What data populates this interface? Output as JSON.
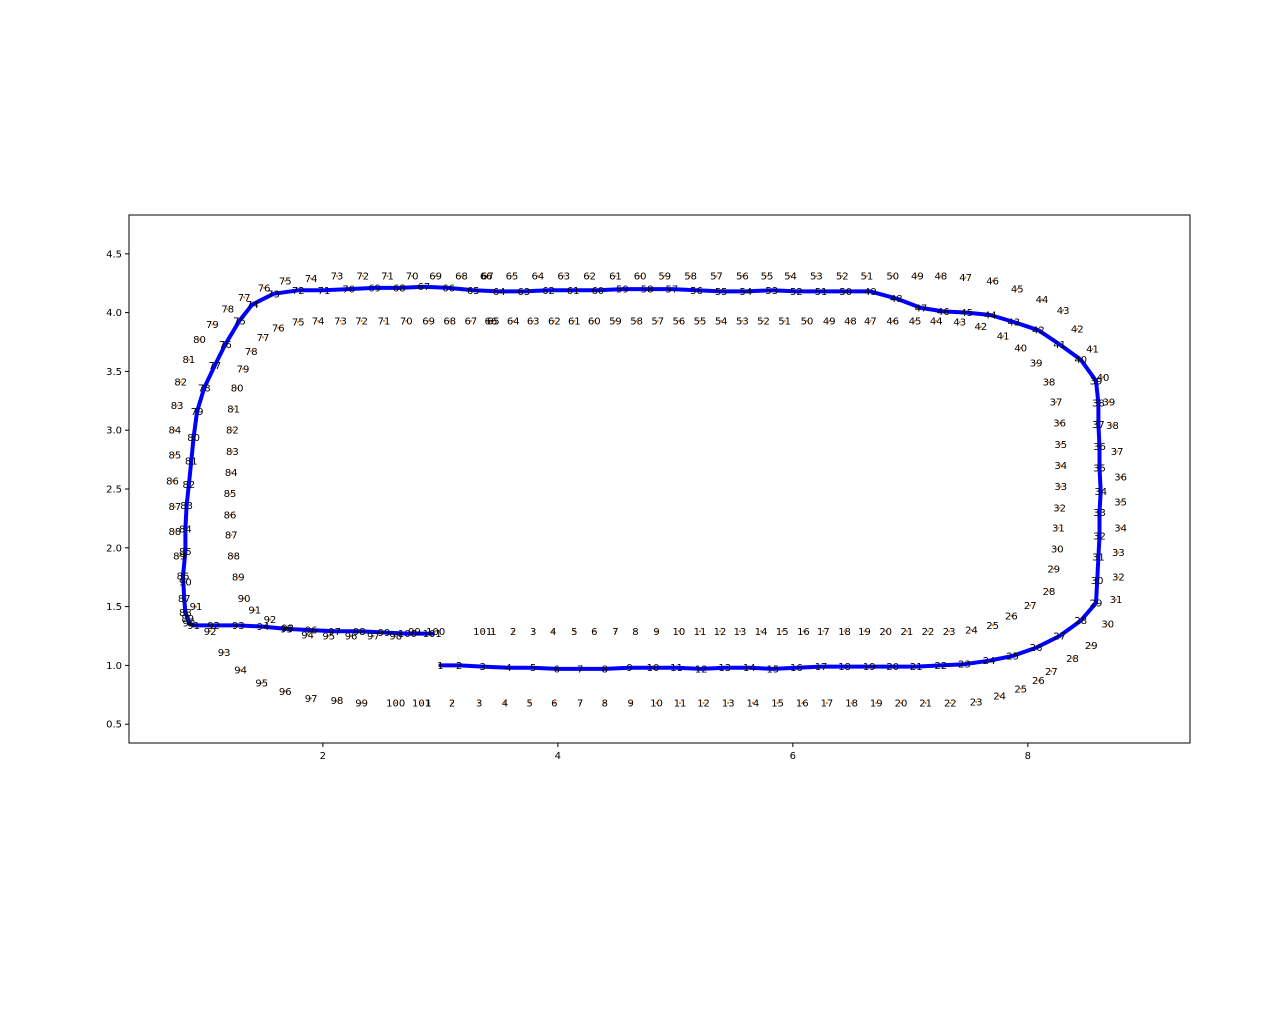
{
  "chart_data": {
    "type": "scatter",
    "title": "",
    "xlabel": "",
    "ylabel": "",
    "xlim": [
      0.35,
      9.38
    ],
    "ylim": [
      0.34,
      4.83
    ],
    "grid": false,
    "x_ticks": [
      "2",
      "4",
      "6",
      "8"
    ],
    "y_ticks": [
      "0.5",
      "1.0",
      "1.5",
      "2.0",
      "2.5",
      "3.0",
      "3.5",
      "4.0",
      "4.5"
    ],
    "point_color": "#ff7f0e",
    "path_color": "#0000ff",
    "series": [
      {
        "role": "outer-boundary",
        "labels": [
          "1",
          "2",
          "3",
          "4",
          "5",
          "6",
          "7",
          "8",
          "9",
          "10",
          "11",
          "12",
          "13",
          "14",
          "15",
          "16",
          "17",
          "18",
          "19",
          "20",
          "21",
          "22",
          "23",
          "24",
          "25",
          "26",
          "27",
          "28",
          "29",
          "30",
          "31",
          "32",
          "33",
          "34",
          "35",
          "36",
          "37",
          "38",
          "39",
          "40",
          "41",
          "42",
          "43",
          "44",
          "45",
          "46",
          "47",
          "48",
          "49",
          "50",
          "51",
          "52",
          "53",
          "54",
          "55",
          "56",
          "57",
          "58",
          "59",
          "60",
          "61",
          "62",
          "63",
          "64",
          "65",
          "66",
          "67",
          "68",
          "69",
          "70",
          "71",
          "72",
          "73",
          "74",
          "75",
          "76",
          "77",
          "78",
          "79",
          "80",
          "81",
          "82",
          "83",
          "84",
          "85",
          "86",
          "87",
          "88",
          "89",
          "90",
          "91",
          "92",
          "93",
          "94",
          "95",
          "96",
          "97",
          "98",
          "99",
          "100",
          "101"
        ],
        "x": [
          2.9,
          3.1,
          3.33,
          3.55,
          3.76,
          3.97,
          4.19,
          4.4,
          4.62,
          4.84,
          5.04,
          5.24,
          5.45,
          5.66,
          5.87,
          6.08,
          6.29,
          6.5,
          6.71,
          6.92,
          7.13,
          7.34,
          7.56,
          7.76,
          7.94,
          8.09,
          8.2,
          8.38,
          8.54,
          8.68,
          8.75,
          8.77,
          8.77,
          8.79,
          8.79,
          8.79,
          8.76,
          8.72,
          8.69,
          8.64,
          8.55,
          8.42,
          8.3,
          8.12,
          7.91,
          7.7,
          7.47,
          7.26,
          7.06,
          6.85,
          6.63,
          6.42,
          6.2,
          5.98,
          5.78,
          5.57,
          5.35,
          5.13,
          4.91,
          4.7,
          4.49,
          4.27,
          4.05,
          3.83,
          3.61,
          3.39,
          3.4,
          3.18,
          2.96,
          2.76,
          2.55,
          2.34,
          2.12,
          1.9,
          1.68,
          1.5,
          1.33,
          1.19,
          1.06,
          0.95,
          0.86,
          0.79,
          0.76,
          0.74,
          0.74,
          0.72,
          0.74,
          0.74,
          0.78,
          0.83,
          0.92,
          1.04,
          1.16,
          1.3,
          1.48,
          1.68,
          1.9,
          2.12,
          2.33,
          2.62,
          2.84
        ],
        "y": [
          0.68,
          0.68,
          0.68,
          0.68,
          0.68,
          0.68,
          0.68,
          0.68,
          0.68,
          0.68,
          0.68,
          0.68,
          0.68,
          0.68,
          0.68,
          0.68,
          0.68,
          0.68,
          0.68,
          0.68,
          0.68,
          0.68,
          0.69,
          0.74,
          0.8,
          0.87,
          0.95,
          1.06,
          1.17,
          1.35,
          1.56,
          1.75,
          1.96,
          2.17,
          2.39,
          2.6,
          2.82,
          3.04,
          3.24,
          3.45,
          3.69,
          3.86,
          4.02,
          4.11,
          4.2,
          4.27,
          4.3,
          4.31,
          4.31,
          4.31,
          4.31,
          4.31,
          4.31,
          4.31,
          4.31,
          4.31,
          4.31,
          4.31,
          4.31,
          4.31,
          4.31,
          4.31,
          4.31,
          4.31,
          4.31,
          4.31,
          4.31,
          4.31,
          4.31,
          4.31,
          4.31,
          4.31,
          4.31,
          4.29,
          4.27,
          4.21,
          4.13,
          4.03,
          3.9,
          3.77,
          3.6,
          3.41,
          3.21,
          3.0,
          2.79,
          2.57,
          2.35,
          2.14,
          1.93,
          1.71,
          1.5,
          1.29,
          1.11,
          0.96,
          0.85,
          0.78,
          0.72,
          0.7,
          0.68,
          0.68,
          0.68
        ]
      },
      {
        "role": "inner-boundary",
        "labels": [
          "1",
          "2",
          "3",
          "4",
          "5",
          "6",
          "7",
          "8",
          "9",
          "10",
          "11",
          "12",
          "13",
          "14",
          "15",
          "16",
          "17",
          "18",
          "19",
          "20",
          "21",
          "22",
          "23",
          "24",
          "25",
          "26",
          "27",
          "28",
          "29",
          "30",
          "31",
          "32",
          "33",
          "34",
          "35",
          "36",
          "37",
          "38",
          "39",
          "40",
          "41",
          "42",
          "43",
          "44",
          "45",
          "46",
          "47",
          "48",
          "49",
          "50",
          "51",
          "52",
          "53",
          "54",
          "55",
          "56",
          "57",
          "58",
          "59",
          "60",
          "61",
          "62",
          "63",
          "64",
          "65",
          "66",
          "67",
          "68",
          "69",
          "70",
          "71",
          "72",
          "73",
          "74",
          "75",
          "76",
          "77",
          "78",
          "79",
          "80",
          "81",
          "82",
          "83",
          "84",
          "85",
          "86",
          "87",
          "88",
          "89",
          "90",
          "91",
          "92",
          "93",
          "94",
          "95",
          "96",
          "97",
          "98",
          "99",
          "100",
          "101"
        ],
        "x": [
          3.45,
          3.62,
          3.79,
          3.96,
          4.14,
          4.31,
          4.49,
          4.66,
          4.84,
          5.03,
          5.21,
          5.38,
          5.55,
          5.73,
          5.91,
          6.09,
          6.26,
          6.44,
          6.61,
          6.79,
          6.97,
          7.15,
          7.33,
          7.52,
          7.7,
          7.86,
          8.02,
          8.18,
          8.22,
          8.25,
          8.26,
          8.27,
          8.28,
          8.28,
          8.28,
          8.27,
          8.24,
          8.18,
          8.07,
          7.94,
          7.79,
          7.6,
          7.42,
          7.22,
          7.04,
          6.85,
          6.66,
          6.49,
          6.31,
          6.12,
          5.93,
          5.75,
          5.57,
          5.39,
          5.21,
          5.03,
          4.85,
          4.67,
          4.49,
          4.31,
          4.14,
          3.97,
          3.79,
          3.62,
          3.45,
          3.43,
          3.26,
          3.08,
          2.9,
          2.71,
          2.52,
          2.33,
          2.15,
          1.96,
          1.79,
          1.62,
          1.49,
          1.39,
          1.32,
          1.27,
          1.24,
          1.23,
          1.23,
          1.22,
          1.21,
          1.21,
          1.22,
          1.24,
          1.28,
          1.33,
          1.42,
          1.55,
          1.7,
          1.87,
          2.05,
          2.24,
          2.43,
          2.62,
          2.78,
          2.96,
          3.36
        ],
        "y": [
          1.29,
          1.29,
          1.29,
          1.29,
          1.29,
          1.29,
          1.29,
          1.29,
          1.29,
          1.29,
          1.29,
          1.29,
          1.29,
          1.29,
          1.29,
          1.29,
          1.29,
          1.29,
          1.29,
          1.29,
          1.29,
          1.29,
          1.29,
          1.3,
          1.34,
          1.42,
          1.51,
          1.63,
          1.82,
          1.99,
          2.17,
          2.34,
          2.52,
          2.7,
          2.88,
          3.06,
          3.24,
          3.41,
          3.57,
          3.7,
          3.8,
          3.88,
          3.92,
          3.93,
          3.93,
          3.93,
          3.93,
          3.93,
          3.93,
          3.93,
          3.93,
          3.93,
          3.93,
          3.93,
          3.93,
          3.93,
          3.93,
          3.93,
          3.93,
          3.93,
          3.93,
          3.93,
          3.93,
          3.93,
          3.93,
          3.93,
          3.93,
          3.93,
          3.93,
          3.93,
          3.93,
          3.93,
          3.93,
          3.93,
          3.92,
          3.87,
          3.79,
          3.67,
          3.52,
          3.36,
          3.18,
          3.0,
          2.82,
          2.64,
          2.46,
          2.28,
          2.11,
          1.93,
          1.75,
          1.57,
          1.47,
          1.39,
          1.32,
          1.26,
          1.25,
          1.25,
          1.25,
          1.25,
          1.29,
          1.29,
          1.29
        ]
      },
      {
        "role": "driven-path",
        "labels": [
          "1",
          "2",
          "3",
          "4",
          "5",
          "6",
          "7",
          "8",
          "9",
          "10",
          "11",
          "12",
          "13",
          "14",
          "15",
          "16",
          "17",
          "18",
          "19",
          "20",
          "21",
          "22",
          "23",
          "24",
          "25",
          "26",
          "27",
          "28",
          "29",
          "30",
          "31",
          "32",
          "33",
          "34",
          "35",
          "36",
          "37",
          "38",
          "39",
          "40",
          "41",
          "42",
          "43",
          "44",
          "45",
          "46",
          "47",
          "48",
          "49",
          "50",
          "51",
          "52",
          "53",
          "54",
          "55",
          "56",
          "57",
          "58",
          "59",
          "60",
          "61",
          "62",
          "63",
          "64",
          "65",
          "66",
          "67",
          "68",
          "69",
          "70",
          "71",
          "72",
          "73",
          "74",
          "75",
          "76",
          "77",
          "78",
          "79",
          "80",
          "81",
          "82",
          "83",
          "84",
          "85",
          "86",
          "87",
          "88",
          "89",
          "90",
          "91",
          "92",
          "93",
          "94",
          "95",
          "96",
          "97",
          "98",
          "99",
          "100",
          "101"
        ],
        "x": [
          3.0,
          3.16,
          3.36,
          3.58,
          3.79,
          3.99,
          4.19,
          4.4,
          4.61,
          4.81,
          5.01,
          5.22,
          5.42,
          5.63,
          5.83,
          6.03,
          6.24,
          6.44,
          6.65,
          6.85,
          7.05,
          7.26,
          7.46,
          7.67,
          7.87,
          8.07,
          8.27,
          8.45,
          8.58,
          8.59,
          8.6,
          8.61,
          8.61,
          8.62,
          8.61,
          8.61,
          8.6,
          8.6,
          8.58,
          8.45,
          8.27,
          8.09,
          7.88,
          7.68,
          7.48,
          7.28,
          7.09,
          6.88,
          6.66,
          6.45,
          6.24,
          6.03,
          5.82,
          5.6,
          5.39,
          5.18,
          4.97,
          4.76,
          4.55,
          4.34,
          4.13,
          3.92,
          3.71,
          3.5,
          3.28,
          3.07,
          2.86,
          2.65,
          2.44,
          2.22,
          2.01,
          1.79,
          1.58,
          1.4,
          1.29,
          1.17,
          1.08,
          0.99,
          0.93,
          0.9,
          0.88,
          0.86,
          0.84,
          0.83,
          0.83,
          0.81,
          0.82,
          0.83,
          0.85,
          0.86,
          0.9,
          1.07,
          1.28,
          1.49,
          1.69,
          1.9,
          2.1,
          2.31,
          2.52,
          2.72,
          2.93
        ],
        "y": [
          1.0,
          1.0,
          0.99,
          0.98,
          0.98,
          0.97,
          0.97,
          0.97,
          0.98,
          0.98,
          0.98,
          0.97,
          0.98,
          0.98,
          0.97,
          0.98,
          0.99,
          0.99,
          0.99,
          0.99,
          0.99,
          1.0,
          1.01,
          1.04,
          1.08,
          1.15,
          1.25,
          1.38,
          1.53,
          1.72,
          1.92,
          2.1,
          2.3,
          2.48,
          2.68,
          2.86,
          3.05,
          3.23,
          3.42,
          3.6,
          3.73,
          3.85,
          3.92,
          3.98,
          4.0,
          4.01,
          4.04,
          4.12,
          4.18,
          4.18,
          4.18,
          4.18,
          4.19,
          4.18,
          4.18,
          4.19,
          4.2,
          4.2,
          4.2,
          4.19,
          4.19,
          4.19,
          4.18,
          4.18,
          4.19,
          4.21,
          4.22,
          4.21,
          4.21,
          4.2,
          4.19,
          4.19,
          4.16,
          4.07,
          3.93,
          3.73,
          3.55,
          3.36,
          3.16,
          2.94,
          2.74,
          2.54,
          2.36,
          2.16,
          1.97,
          1.76,
          1.57,
          1.45,
          1.4,
          1.36,
          1.34,
          1.34,
          1.34,
          1.33,
          1.31,
          1.3,
          1.29,
          1.29,
          1.28,
          1.27,
          1.27
        ]
      }
    ]
  }
}
